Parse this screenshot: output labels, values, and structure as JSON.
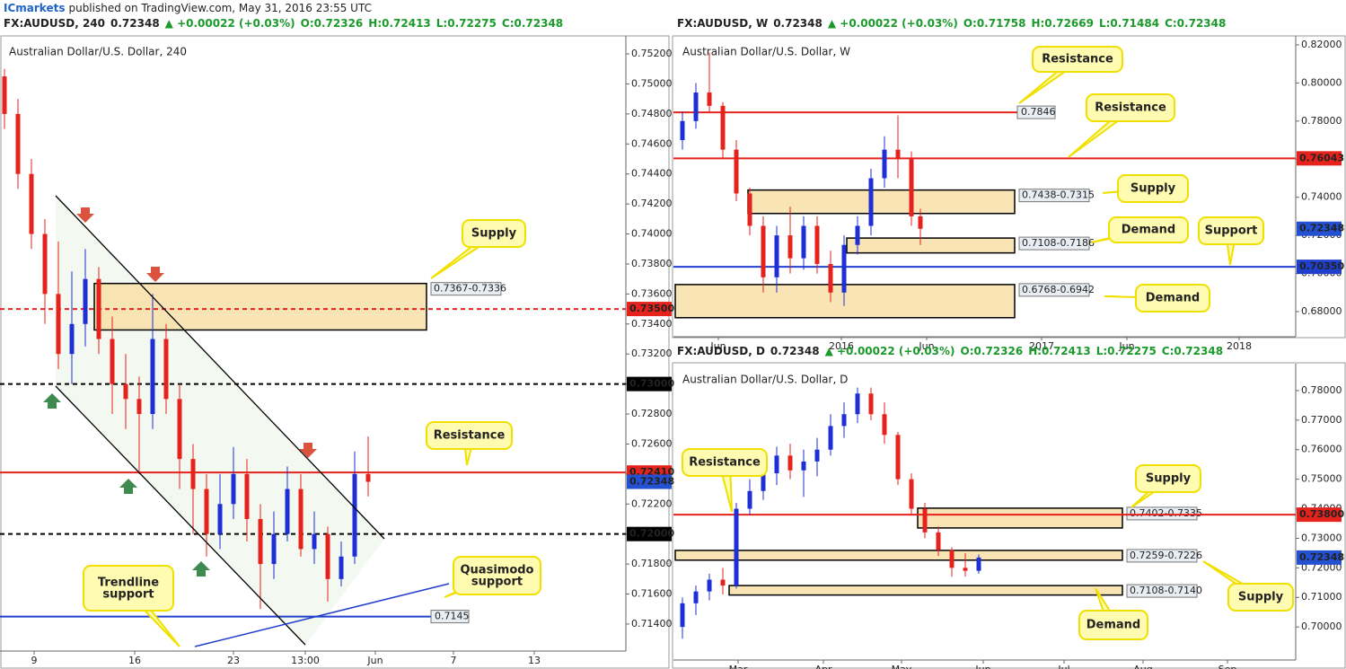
{
  "header": {
    "author": "ICmarkets",
    "text": "published on TradingView.com, May 31, 2016 23:55 UTC"
  },
  "chart_data": [
    {
      "type": "candlestick",
      "symbol": "FX:AUDUSD, 240",
      "last": "0.72348",
      "change": "▲ +0.00022 (+0.03%)",
      "ohlc_text": [
        "O:0.72326",
        "H:0.72413",
        "L:0.72275",
        "C:0.72348"
      ],
      "title": "Australian Dollar/U.S. Dollar, 240",
      "up_color": "#1e2fd6",
      "down_color": "#e5221c",
      "xlim": [
        0,
        139
      ],
      "ylim": [
        0.7122,
        0.7532
      ],
      "xticks": [
        {
          "value": 7.6,
          "label": "9"
        },
        {
          "value": 30,
          "label": "16"
        },
        {
          "value": 52,
          "label": "23"
        },
        {
          "value": 68,
          "label": "13:00"
        },
        {
          "value": 83.6,
          "label": "Jun"
        },
        {
          "value": 101,
          "label": "7"
        },
        {
          "value": 119,
          "label": "13"
        }
      ],
      "yticks": [
        {
          "value": 0.714,
          "label": "0.71400"
        },
        {
          "value": 0.716,
          "label": "0.71600"
        },
        {
          "value": 0.718,
          "label": "0.71800"
        },
        {
          "value": 0.72,
          "label": "0.72000"
        },
        {
          "value": 0.722,
          "label": "0.72200"
        },
        {
          "value": 0.724,
          "label": "0.72400"
        },
        {
          "value": 0.726,
          "label": "0.72600"
        },
        {
          "value": 0.728,
          "label": "0.72800"
        },
        {
          "value": 0.73,
          "label": "0.73000"
        },
        {
          "value": 0.732,
          "label": "0.73200"
        },
        {
          "value": 0.734,
          "label": "0.73400"
        },
        {
          "value": 0.736,
          "label": "0.73600"
        },
        {
          "value": 0.738,
          "label": "0.73800"
        },
        {
          "value": 0.74,
          "label": "0.74000"
        },
        {
          "value": 0.742,
          "label": "0.74200"
        },
        {
          "value": 0.744,
          "label": "0.74400"
        },
        {
          "value": 0.746,
          "label": "0.74600"
        },
        {
          "value": 0.748,
          "label": "0.74800"
        },
        {
          "value": 0.75,
          "label": "0.75000"
        },
        {
          "value": 0.752,
          "label": "0.75200"
        }
      ],
      "x": [
        1,
        4,
        7,
        10,
        13,
        16,
        19,
        22,
        25,
        28,
        31,
        34,
        37,
        40,
        43,
        46,
        49,
        52,
        55,
        58,
        61,
        64,
        67,
        70,
        73,
        76,
        79,
        82
      ],
      "ohlc": [
        [
          0.7505,
          0.751,
          0.747,
          0.748
        ],
        [
          0.748,
          0.749,
          0.743,
          0.744
        ],
        [
          0.744,
          0.745,
          0.739,
          0.74
        ],
        [
          0.74,
          0.741,
          0.734,
          0.736
        ],
        [
          0.736,
          0.7395,
          0.731,
          0.732
        ],
        [
          0.732,
          0.7375,
          0.73,
          0.734
        ],
        [
          0.734,
          0.739,
          0.7325,
          0.737
        ],
        [
          0.737,
          0.7378,
          0.732,
          0.733
        ],
        [
          0.733,
          0.7345,
          0.728,
          0.73
        ],
        [
          0.73,
          0.732,
          0.727,
          0.729
        ],
        [
          0.729,
          0.7305,
          0.724,
          0.728
        ],
        [
          0.728,
          0.736,
          0.727,
          0.733
        ],
        [
          0.733,
          0.734,
          0.728,
          0.729
        ],
        [
          0.729,
          0.73,
          0.723,
          0.725
        ],
        [
          0.725,
          0.726,
          0.72,
          0.723
        ],
        [
          0.723,
          0.724,
          0.7185,
          0.72
        ],
        [
          0.72,
          0.724,
          0.719,
          0.722
        ],
        [
          0.722,
          0.7258,
          0.721,
          0.724
        ],
        [
          0.724,
          0.725,
          0.7195,
          0.721
        ],
        [
          0.721,
          0.722,
          0.715,
          0.718
        ],
        [
          0.718,
          0.7215,
          0.717,
          0.72
        ],
        [
          0.72,
          0.7245,
          0.7195,
          0.723
        ],
        [
          0.723,
          0.724,
          0.7185,
          0.719
        ],
        [
          0.719,
          0.7215,
          0.718,
          0.72
        ],
        [
          0.72,
          0.7205,
          0.7155,
          0.717
        ],
        [
          0.717,
          0.7195,
          0.7165,
          0.7185
        ],
        [
          0.7185,
          0.7255,
          0.718,
          0.724
        ],
        [
          0.724,
          0.7265,
          0.7225,
          0.72348
        ]
      ],
      "levels": [
        {
          "value": 0.735,
          "color": "#e5221c",
          "dashed": true
        },
        {
          "value": 0.73,
          "color": "#000000",
          "dashed": true
        },
        {
          "value": 0.7241,
          "color": "#e5221c",
          "dashed": false
        },
        {
          "value": 0.72,
          "color": "#000000",
          "dashed": true
        },
        {
          "value": 0.7145,
          "color": "#1f3fcc",
          "dashed": false,
          "tag": true
        }
      ],
      "price_labels": [
        {
          "value": 0.735,
          "label": "0.73500",
          "color": "#e5221c"
        },
        {
          "value": 0.73,
          "label": "0.73000",
          "color": "#000000"
        },
        {
          "value": 0.7241,
          "label": "0.72410",
          "color": "#e5221c"
        },
        {
          "value": 0.72348,
          "label": "0.72348",
          "color": "#2450d2"
        },
        {
          "value": 0.72,
          "label": "0.72000",
          "color": "#000000"
        }
      ],
      "zones": [
        {
          "range": [
            0.7367,
            0.7336
          ],
          "label": "0.7367-0.7336"
        }
      ],
      "callouts": [
        "Supply",
        "Resistance",
        "Quasimodo support",
        "Trendline support"
      ]
    },
    {
      "type": "candlestick",
      "symbol": "FX:AUDUSD, W",
      "last": "0.72348",
      "change": "▲ +0.00022 (+0.03%)",
      "ohlc_text": [
        "O:0.71758",
        "H:0.72669",
        "L:0.71484",
        "C:0.72348"
      ],
      "title": "Australian Dollar/U.S. Dollar, W",
      "up_color": "#1e2fd6",
      "down_color": "#e5221c",
      "xlim": [
        0,
        138
      ],
      "ylim": [
        0.6668,
        0.8247
      ],
      "xticks": [
        {
          "value": 10,
          "label": "Jun"
        },
        {
          "value": 37.4,
          "label": "2016"
        },
        {
          "value": 56.4,
          "label": "Jun"
        },
        {
          "value": 82,
          "label": "2017"
        },
        {
          "value": 101,
          "label": "Jun"
        },
        {
          "value": 126,
          "label": "2018"
        }
      ],
      "yticks": [
        {
          "value": 0.68,
          "label": "0.68000"
        },
        {
          "value": 0.7,
          "label": "0.70000"
        },
        {
          "value": 0.72,
          "label": "0.72000"
        },
        {
          "value": 0.74,
          "label": "0.74000"
        },
        {
          "value": 0.76,
          "label": "0.76000"
        },
        {
          "value": 0.78,
          "label": "0.78000"
        },
        {
          "value": 0.8,
          "label": "0.80000"
        },
        {
          "value": 0.82,
          "label": "0.82000"
        }
      ],
      "x": [
        2,
        5,
        8,
        11,
        14,
        17,
        20,
        23,
        26,
        29,
        32,
        35,
        38,
        41,
        44,
        47,
        50,
        53,
        55
      ],
      "ohlc": [
        [
          0.77,
          0.785,
          0.765,
          0.78
        ],
        [
          0.78,
          0.8,
          0.776,
          0.795
        ],
        [
          0.795,
          0.816,
          0.785,
          0.788
        ],
        [
          0.788,
          0.79,
          0.76,
          0.765
        ],
        [
          0.765,
          0.77,
          0.738,
          0.742
        ],
        [
          0.742,
          0.745,
          0.72,
          0.725
        ],
        [
          0.725,
          0.73,
          0.69,
          0.698
        ],
        [
          0.698,
          0.725,
          0.69,
          0.72
        ],
        [
          0.72,
          0.735,
          0.7,
          0.708
        ],
        [
          0.708,
          0.73,
          0.702,
          0.725
        ],
        [
          0.725,
          0.73,
          0.7,
          0.705
        ],
        [
          0.705,
          0.712,
          0.685,
          0.69
        ],
        [
          0.69,
          0.72,
          0.683,
          0.715
        ],
        [
          0.715,
          0.73,
          0.71,
          0.725
        ],
        [
          0.725,
          0.755,
          0.72,
          0.75
        ],
        [
          0.75,
          0.772,
          0.745,
          0.765
        ],
        [
          0.765,
          0.783,
          0.75,
          0.76
        ],
        [
          0.76,
          0.764,
          0.725,
          0.73
        ],
        [
          0.73,
          0.734,
          0.715,
          0.72348
        ]
      ],
      "levels": [
        {
          "value": 0.7846,
          "color": "#e5221c",
          "dashed": false,
          "tag": true
        },
        {
          "value": 0.76043,
          "color": "#e5221c",
          "dashed": false
        },
        {
          "value": 0.7035,
          "color": "#1f3fcc",
          "dashed": false
        }
      ],
      "price_labels": [
        {
          "value": 0.76043,
          "label": "0.76043",
          "color": "#e5221c"
        },
        {
          "value": 0.72348,
          "label": "0.72348",
          "color": "#2450d2"
        },
        {
          "value": 0.7035,
          "label": "0.70350",
          "color": "#1f3fcc"
        }
      ],
      "zones": [
        {
          "range": [
            0.7438,
            0.7315
          ],
          "label": "0.7438-0.7315"
        },
        {
          "range": [
            0.7108,
            0.7186
          ],
          "label": "0.7108-0.7186"
        },
        {
          "range": [
            0.6768,
            0.6942
          ],
          "label": "0.6768-0.6942"
        }
      ],
      "callouts": [
        "Resistance",
        "Resistance",
        "Supply",
        "Demand",
        "Support",
        "Demand"
      ]
    },
    {
      "type": "candlestick",
      "symbol": "FX:AUDUSD, D",
      "last": "0.72348",
      "change": "▲ +0.00022 (+0.03%)",
      "ohlc_text": [
        "O:0.72326",
        "H:0.72413",
        "L:0.72275",
        "C:0.72348"
      ],
      "title": "Australian Dollar/U.S. Dollar, D",
      "up_color": "#1e2fd6",
      "down_color": "#e5221c",
      "xlim": [
        0,
        138
      ],
      "ylim": [
        0.6888,
        0.7891
      ],
      "xticks": [
        {
          "value": 14.4,
          "label": "Mar"
        },
        {
          "value": 33.4,
          "label": "Apr"
        },
        {
          "value": 50.8,
          "label": "May"
        },
        {
          "value": 69,
          "label": "Jun"
        },
        {
          "value": 87,
          "label": "Jul"
        },
        {
          "value": 104.6,
          "label": "Aug"
        },
        {
          "value": 123.4,
          "label": "Sep"
        }
      ],
      "yticks": [
        {
          "value": 0.7,
          "label": "0.70000"
        },
        {
          "value": 0.71,
          "label": "0.71000"
        },
        {
          "value": 0.72,
          "label": "0.72000"
        },
        {
          "value": 0.73,
          "label": "0.73000"
        },
        {
          "value": 0.74,
          "label": "0.74000"
        },
        {
          "value": 0.75,
          "label": "0.75000"
        },
        {
          "value": 0.76,
          "label": "0.76000"
        },
        {
          "value": 0.77,
          "label": "0.77000"
        },
        {
          "value": 0.78,
          "label": "0.78000"
        }
      ],
      "x": [
        2,
        5,
        8,
        11,
        14,
        17,
        20,
        23,
        26,
        29,
        32,
        35,
        38,
        41,
        44,
        47,
        50,
        53,
        56,
        59,
        62,
        65,
        68
      ],
      "ohlc": [
        [
          0.7,
          0.71,
          0.696,
          0.708
        ],
        [
          0.708,
          0.714,
          0.704,
          0.712
        ],
        [
          0.712,
          0.718,
          0.709,
          0.716
        ],
        [
          0.716,
          0.72,
          0.711,
          0.714
        ],
        [
          0.714,
          0.742,
          0.713,
          0.74
        ],
        [
          0.74,
          0.75,
          0.738,
          0.746
        ],
        [
          0.746,
          0.756,
          0.743,
          0.752
        ],
        [
          0.752,
          0.761,
          0.748,
          0.758
        ],
        [
          0.758,
          0.762,
          0.75,
          0.753
        ],
        [
          0.753,
          0.76,
          0.744,
          0.756
        ],
        [
          0.756,
          0.764,
          0.751,
          0.76
        ],
        [
          0.76,
          0.772,
          0.758,
          0.768
        ],
        [
          0.768,
          0.776,
          0.764,
          0.772
        ],
        [
          0.772,
          0.781,
          0.769,
          0.779
        ],
        [
          0.779,
          0.781,
          0.77,
          0.772
        ],
        [
          0.772,
          0.776,
          0.762,
          0.765
        ],
        [
          0.765,
          0.766,
          0.748,
          0.75
        ],
        [
          0.75,
          0.752,
          0.738,
          0.74
        ],
        [
          0.74,
          0.742,
          0.73,
          0.732
        ],
        [
          0.732,
          0.734,
          0.724,
          0.726
        ],
        [
          0.726,
          0.727,
          0.717,
          0.72
        ],
        [
          0.72,
          0.725,
          0.717,
          0.719
        ],
        [
          0.719,
          0.7245,
          0.718,
          0.72348
        ]
      ],
      "levels": [
        {
          "value": 0.738,
          "color": "#e5221c",
          "dashed": false
        }
      ],
      "price_labels": [
        {
          "value": 0.738,
          "label": "0.73800",
          "color": "#e5221c"
        },
        {
          "value": 0.72348,
          "label": "0.72348",
          "color": "#2450d2"
        }
      ],
      "zones": [
        {
          "range": [
            0.7402,
            0.7335
          ],
          "label": "0.7402-0.7335"
        },
        {
          "range": [
            0.7259,
            0.7226
          ],
          "label": "0.7259-0.7226"
        },
        {
          "range": [
            0.7108,
            0.714
          ],
          "label": "0.7108-0.7140"
        }
      ],
      "callouts": [
        "Resistance",
        "Supply",
        "Supply",
        "Demand"
      ]
    }
  ]
}
